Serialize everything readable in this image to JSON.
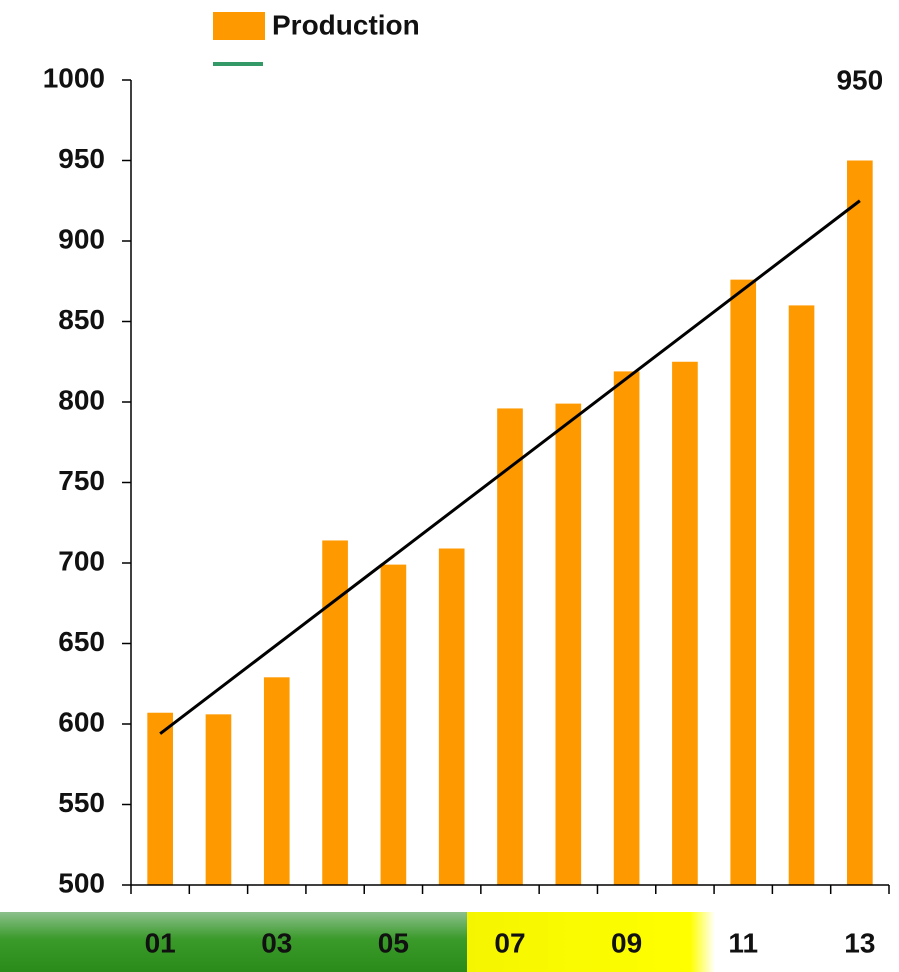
{
  "chart_data": {
    "type": "bar",
    "legend": [
      "Production"
    ],
    "categories": [
      "01",
      null,
      "03",
      null,
      "05",
      null,
      "07",
      null,
      "09",
      null,
      "11",
      null,
      "13"
    ],
    "series": [
      {
        "name": "Production",
        "color": "#ff9900",
        "values": [
          607,
          606,
          629,
          714,
          699,
          709,
          796,
          799,
          819,
          825,
          876,
          860,
          950
        ],
        "value_labels": [
          null,
          null,
          null,
          null,
          null,
          null,
          null,
          null,
          null,
          null,
          null,
          null,
          "950"
        ]
      }
    ],
    "trend": {
      "start": 594,
      "end": 925,
      "color": "#000000",
      "legend_color": "#339966"
    },
    "ylim": [
      500,
      1000
    ],
    "yticks": [
      500,
      550,
      600,
      650,
      700,
      750,
      800,
      850,
      900,
      950,
      1000
    ]
  }
}
